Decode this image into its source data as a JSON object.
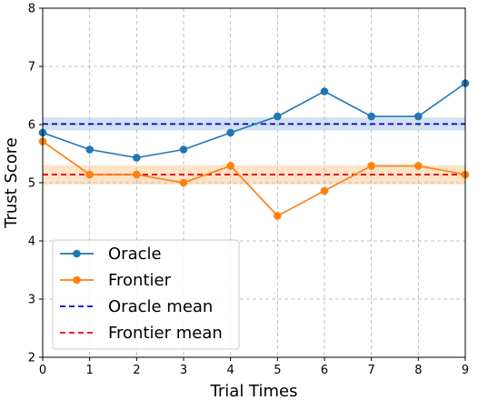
{
  "chart_data": {
    "type": "line",
    "xlabel": "Trial Times",
    "ylabel": "Trust Score",
    "xlim": [
      0,
      9
    ],
    "ylim": [
      2,
      8
    ],
    "xticks": [
      0,
      1,
      2,
      3,
      4,
      5,
      6,
      7,
      8,
      9
    ],
    "yticks": [
      2,
      3,
      4,
      5,
      6,
      7,
      8
    ],
    "grid": true,
    "legend_position": "bottom-left",
    "x": [
      0,
      1,
      2,
      3,
      4,
      5,
      6,
      7,
      8,
      9
    ],
    "series": [
      {
        "name": "Oracle",
        "color": "#1f77b4",
        "marker": "circle",
        "values": [
          5.86,
          5.57,
          5.43,
          5.57,
          5.86,
          6.14,
          6.57,
          6.14,
          6.14,
          6.71
        ]
      },
      {
        "name": "Frontier",
        "color": "#ff7f0e",
        "marker": "circle",
        "values": [
          5.71,
          5.14,
          5.14,
          5.0,
          5.29,
          4.43,
          4.86,
          5.29,
          5.29,
          5.14
        ]
      }
    ],
    "reference_lines": [
      {
        "name": "Oracle mean",
        "value": 6.01,
        "color": "#0000cc",
        "style": "dashed",
        "band": [
          5.9,
          6.12
        ],
        "band_color": "#aec7e8"
      },
      {
        "name": "Frontier mean",
        "value": 5.14,
        "color": "#e8000b",
        "style": "dashed",
        "band": [
          4.97,
          5.3
        ],
        "band_color": "#ffcc99"
      }
    ]
  }
}
